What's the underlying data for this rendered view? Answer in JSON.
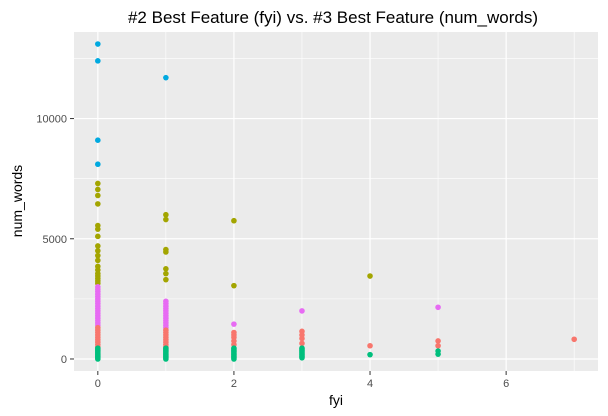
{
  "chart_data": {
    "type": "scatter",
    "title": "#2 Best Feature (fyi) vs. #3 Best Feature (num_words)",
    "xlabel": "fyi",
    "ylabel": "num_words",
    "xlim": [
      -0.35,
      7.35
    ],
    "ylim": [
      -500,
      13600
    ],
    "x_ticks": [
      0,
      2,
      4,
      6
    ],
    "y_ticks": [
      0,
      5000,
      10000
    ],
    "x_tick_labels": [
      "0",
      "2",
      "4",
      "6"
    ],
    "y_tick_labels": [
      "0",
      "5000",
      "10000"
    ],
    "grid": true,
    "legend": "none",
    "background": "#ebebeb",
    "colors": {
      "blue": "#00a9e0",
      "olive": "#a3a500",
      "magenta": "#e76bf3",
      "salmon": "#f8766d",
      "green": "#00bf7d"
    },
    "series": [
      {
        "color": "blue",
        "points": [
          [
            0,
            13100
          ],
          [
            0,
            12400
          ],
          [
            0,
            9100
          ],
          [
            0,
            8100
          ],
          [
            1,
            11700
          ]
        ]
      },
      {
        "color": "olive",
        "points": [
          [
            0,
            7300
          ],
          [
            0,
            7050
          ],
          [
            0,
            6800
          ],
          [
            0,
            6450
          ],
          [
            0,
            5550
          ],
          [
            0,
            5400
          ],
          [
            0,
            5100
          ],
          [
            0,
            4700
          ],
          [
            0,
            4500
          ],
          [
            0,
            4300
          ],
          [
            0,
            4100
          ],
          [
            0,
            3850
          ],
          [
            0,
            3700
          ],
          [
            0,
            3550
          ],
          [
            0,
            3450
          ],
          [
            0,
            3350
          ],
          [
            0,
            3250
          ],
          [
            0,
            3150
          ],
          [
            1,
            6000
          ],
          [
            1,
            5800
          ],
          [
            1,
            4550
          ],
          [
            1,
            4450
          ],
          [
            1,
            3750
          ],
          [
            1,
            3550
          ],
          [
            1,
            3300
          ],
          [
            2,
            5750
          ],
          [
            2,
            3050
          ],
          [
            4,
            3450
          ]
        ]
      },
      {
        "color": "magenta",
        "points": [
          [
            0,
            3000
          ],
          [
            0,
            2900
          ],
          [
            0,
            2800
          ],
          [
            0,
            2700
          ],
          [
            0,
            2600
          ],
          [
            0,
            2500
          ],
          [
            0,
            2400
          ],
          [
            0,
            2300
          ],
          [
            0,
            2200
          ],
          [
            0,
            2100
          ],
          [
            0,
            2000
          ],
          [
            0,
            1900
          ],
          [
            0,
            1800
          ],
          [
            0,
            1700
          ],
          [
            0,
            1600
          ],
          [
            0,
            1500
          ],
          [
            0,
            1400
          ],
          [
            1,
            2400
          ],
          [
            1,
            2300
          ],
          [
            1,
            2200
          ],
          [
            1,
            2100
          ],
          [
            1,
            2000
          ],
          [
            1,
            1900
          ],
          [
            1,
            1800
          ],
          [
            1,
            1700
          ],
          [
            1,
            1600
          ],
          [
            1,
            1500
          ],
          [
            1,
            1400
          ],
          [
            1,
            1300
          ],
          [
            2,
            1450
          ],
          [
            3,
            2000
          ],
          [
            5,
            2150
          ]
        ]
      },
      {
        "color": "salmon",
        "points": [
          [
            0,
            1300
          ],
          [
            0,
            1200
          ],
          [
            0,
            1100
          ],
          [
            0,
            1000
          ],
          [
            0,
            900
          ],
          [
            0,
            800
          ],
          [
            0,
            700
          ],
          [
            0,
            600
          ],
          [
            0,
            500
          ],
          [
            1,
            1200
          ],
          [
            1,
            1100
          ],
          [
            1,
            1000
          ],
          [
            1,
            900
          ],
          [
            1,
            800
          ],
          [
            1,
            700
          ],
          [
            1,
            600
          ],
          [
            1,
            500
          ],
          [
            2,
            1100
          ],
          [
            2,
            1000
          ],
          [
            2,
            900
          ],
          [
            2,
            750
          ],
          [
            2,
            600
          ],
          [
            3,
            1150
          ],
          [
            3,
            1000
          ],
          [
            3,
            850
          ],
          [
            3,
            650
          ],
          [
            4,
            550
          ],
          [
            5,
            750
          ],
          [
            5,
            550
          ],
          [
            7,
            820
          ]
        ]
      },
      {
        "color": "green",
        "points": [
          [
            0,
            450
          ],
          [
            0,
            400
          ],
          [
            0,
            350
          ],
          [
            0,
            300
          ],
          [
            0,
            250
          ],
          [
            0,
            200
          ],
          [
            0,
            150
          ],
          [
            0,
            100
          ],
          [
            0,
            50
          ],
          [
            0,
            0
          ],
          [
            1,
            450
          ],
          [
            1,
            400
          ],
          [
            1,
            350
          ],
          [
            1,
            300
          ],
          [
            1,
            250
          ],
          [
            1,
            200
          ],
          [
            1,
            150
          ],
          [
            1,
            100
          ],
          [
            1,
            50
          ],
          [
            1,
            0
          ],
          [
            2,
            450
          ],
          [
            2,
            400
          ],
          [
            2,
            350
          ],
          [
            2,
            300
          ],
          [
            2,
            250
          ],
          [
            2,
            200
          ],
          [
            2,
            150
          ],
          [
            2,
            100
          ],
          [
            2,
            50
          ],
          [
            2,
            0
          ],
          [
            3,
            450
          ],
          [
            3,
            400
          ],
          [
            3,
            350
          ],
          [
            3,
            300
          ],
          [
            3,
            250
          ],
          [
            3,
            200
          ],
          [
            3,
            150
          ],
          [
            3,
            100
          ],
          [
            3,
            50
          ],
          [
            4,
            180
          ],
          [
            5,
            330
          ],
          [
            5,
            200
          ]
        ]
      }
    ]
  }
}
